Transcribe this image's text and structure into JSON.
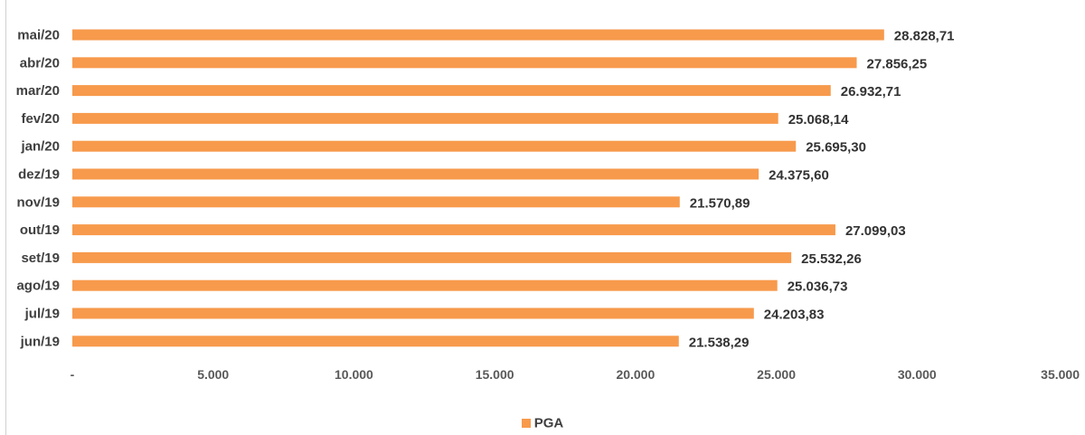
{
  "colors": {
    "bar": "#F79A4C"
  },
  "chart_data": {
    "type": "bar",
    "orientation": "horizontal",
    "categories": [
      "mai/20",
      "abr/20",
      "mar/20",
      "fev/20",
      "jan/20",
      "dez/19",
      "nov/19",
      "out/19",
      "set/19",
      "ago/19",
      "jul/19",
      "jun/19"
    ],
    "series": [
      {
        "name": "PGA",
        "values": [
          28828.71,
          27856.25,
          26932.71,
          25068.14,
          25695.3,
          24375.6,
          21570.89,
          27099.03,
          25532.26,
          25036.73,
          24203.83,
          21538.29
        ],
        "labels": [
          "28.828,71",
          "27.856,25",
          "26.932,71",
          "25.068,14",
          "25.695,30",
          "24.375,60",
          "21.570,89",
          "27.099,03",
          "25.532,26",
          "25.036,73",
          "24.203,83",
          "21.538,29"
        ]
      }
    ],
    "xlim": [
      0,
      35000
    ],
    "xticks": [
      0,
      5000,
      10000,
      15000,
      20000,
      25000,
      30000,
      35000
    ],
    "xtick_labels": [
      "-",
      "5.000",
      "10.000",
      "15.000",
      "20.000",
      "25.000",
      "30.000",
      "35.000"
    ],
    "grid": false,
    "legend": {
      "position": "bottom",
      "entries": [
        "PGA"
      ]
    }
  }
}
